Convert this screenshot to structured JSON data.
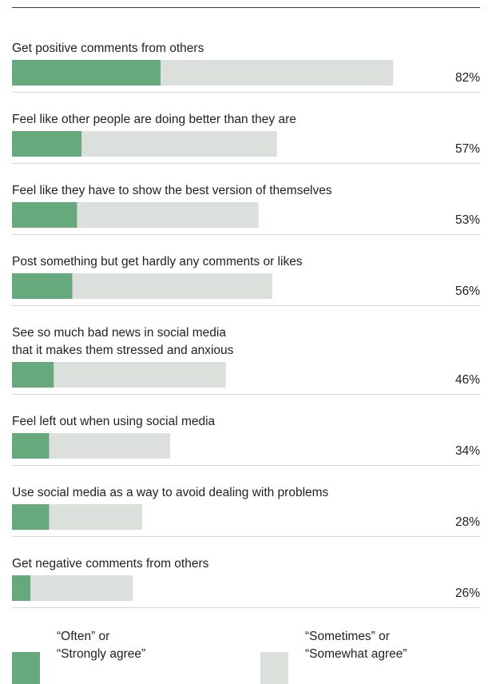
{
  "chart_data": {
    "type": "bar",
    "orientation": "horizontal",
    "stacked": true,
    "categories": [
      [
        "Get positive comments from others"
      ],
      [
        "Feel like other people are doing better than they are"
      ],
      [
        "Feel like they have to show the best version of themselves"
      ],
      [
        "Post something but get hardly any comments or likes"
      ],
      [
        "See so much bad news in social media",
        "that it makes them stressed and anxious"
      ],
      [
        "Feel left out when using social media"
      ],
      [
        "Use social media as a way to avoid dealing with problems"
      ],
      [
        "Get negative comments from others"
      ]
    ],
    "series": [
      {
        "name": "“Often” or “Strongly agree”",
        "color": "#66a97d",
        "values": [
          32,
          15,
          14,
          13,
          9,
          8,
          8,
          4
        ]
      },
      {
        "name": "“Sometimes” or “Somewhat agree”",
        "color": "#dce0dc",
        "values": [
          50,
          42,
          39,
          43,
          37,
          26,
          20,
          22
        ]
      }
    ],
    "totals": [
      "82%",
      "57%",
      "53%",
      "56%",
      "46%",
      "34%",
      "28%",
      "26%"
    ],
    "xlim": [
      0,
      100
    ],
    "grid": false,
    "legend_position": "bottom"
  },
  "legend": {
    "often_line1": "“Often” or",
    "often_line2": "“Strongly agree”",
    "sometimes_line1": "“Sometimes” or",
    "sometimes_line2": "“Somewhat agree”"
  }
}
